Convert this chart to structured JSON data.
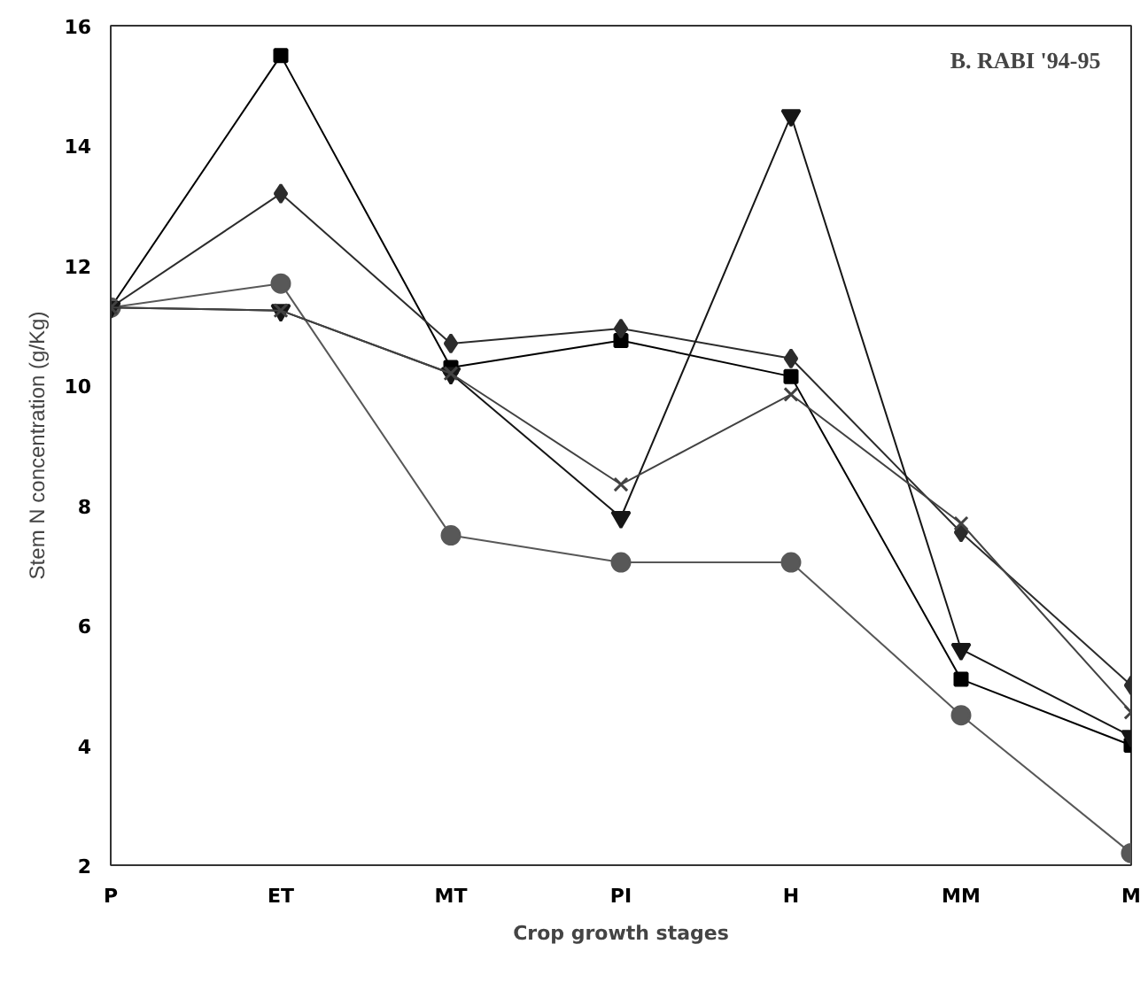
{
  "chart_data": {
    "type": "line",
    "title": "B. RABI '94-95",
    "xlabel": "Crop growth stages",
    "ylabel": "Stem N concentration (g/Kg)",
    "categories": [
      "P",
      "ET",
      "MT",
      "PI",
      "H",
      "MM",
      "M"
    ],
    "series": [
      {
        "color": "#000000",
        "marker": "square",
        "values": [
          11.3,
          15.5,
          10.3,
          10.75,
          10.15,
          5.1,
          4.0
        ]
      },
      {
        "color": "#2c2c2c",
        "marker": "diamond",
        "values": [
          11.3,
          13.2,
          10.7,
          10.95,
          10.45,
          7.55,
          5.0
        ]
      },
      {
        "color": "#585858",
        "marker": "circle",
        "values": [
          11.3,
          11.7,
          7.5,
          7.05,
          7.05,
          4.5,
          2.2
        ]
      },
      {
        "color": "#161616",
        "marker": "triangle",
        "values": [
          11.3,
          11.25,
          10.2,
          7.8,
          14.5,
          5.6,
          4.15
        ]
      },
      {
        "color": "#424242",
        "marker": "cross",
        "values": [
          11.3,
          11.25,
          10.2,
          8.35,
          9.85,
          7.7,
          4.55
        ]
      }
    ],
    "ylim": [
      2,
      16
    ],
    "yticks": [
      2,
      4,
      6,
      8,
      10,
      12,
      14,
      16
    ],
    "grid": false
  }
}
